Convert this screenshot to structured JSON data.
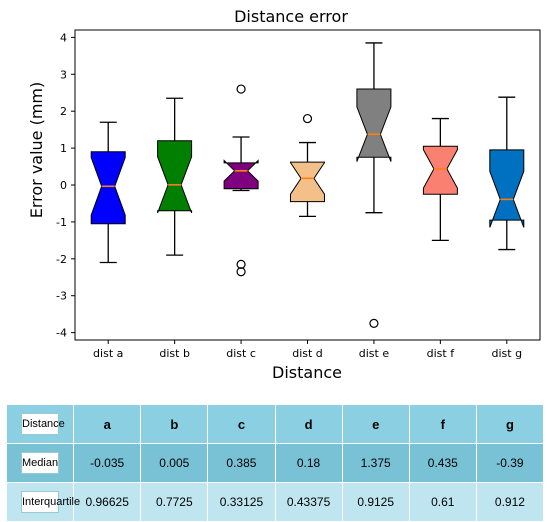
{
  "chart_data": {
    "type": "boxplot",
    "title": "Distance error",
    "xlabel": "Distance",
    "ylabel": "Error value (mm)",
    "ylim": [
      -4.2,
      4.2
    ],
    "yticks": [
      -4,
      -3,
      -2,
      -1,
      0,
      1,
      2,
      3,
      4
    ],
    "grid": false,
    "notched": true,
    "categories": [
      "dist a",
      "dist b",
      "dist c",
      "dist d",
      "dist e",
      "dist f",
      "dist g"
    ],
    "boxes": [
      {
        "label": "dist a",
        "color": "#0000ff",
        "whisker_low": -2.1,
        "q1": -1.05,
        "median": -0.035,
        "q3": 0.9,
        "whisker_high": 1.7,
        "outliers": []
      },
      {
        "label": "dist b",
        "color": "#007f00",
        "whisker_low": -1.9,
        "q1": -0.7,
        "median": 0.005,
        "q3": 1.2,
        "whisker_high": 2.35,
        "outliers": []
      },
      {
        "label": "dist c",
        "color": "#7f007f",
        "whisker_low": -0.15,
        "q1": -0.1,
        "median": 0.385,
        "q3": 0.6,
        "whisker_high": 1.3,
        "outliers": [
          2.6,
          -2.15,
          -2.35
        ]
      },
      {
        "label": "dist d",
        "color": "#f4c089",
        "whisker_low": -0.85,
        "q1": -0.45,
        "median": 0.18,
        "q3": 0.62,
        "whisker_high": 1.15,
        "outliers": [
          1.8
        ]
      },
      {
        "label": "dist e",
        "color": "#808080",
        "whisker_low": -0.75,
        "q1": 0.75,
        "median": 1.375,
        "q3": 2.6,
        "whisker_high": 3.85,
        "outliers": [
          -3.75
        ]
      },
      {
        "label": "dist f",
        "color": "#fa8072",
        "whisker_low": -1.5,
        "q1": -0.25,
        "median": 0.435,
        "q3": 1.05,
        "whisker_high": 1.8,
        "outliers": []
      },
      {
        "label": "dist g",
        "color": "#0070c0",
        "whisker_low": -1.75,
        "q1": -0.95,
        "median": -0.39,
        "q3": 0.95,
        "whisker_high": 2.38,
        "outliers": []
      }
    ],
    "median_line_color": "#ff7f0e",
    "table": {
      "headers": [
        "Distance",
        "a",
        "b",
        "c",
        "d",
        "e",
        "f",
        "g"
      ],
      "rows": [
        {
          "label": "Median",
          "values": [
            "-0.035",
            "0.005",
            "0.385",
            "0.18",
            "1.375",
            "0.435",
            "-0.39"
          ]
        },
        {
          "label": "Interquartile",
          "values": [
            "0.96625",
            "0.7725",
            "0.33125",
            "0.43375",
            "0.9125",
            "0.61",
            "0.912"
          ]
        }
      ]
    }
  }
}
